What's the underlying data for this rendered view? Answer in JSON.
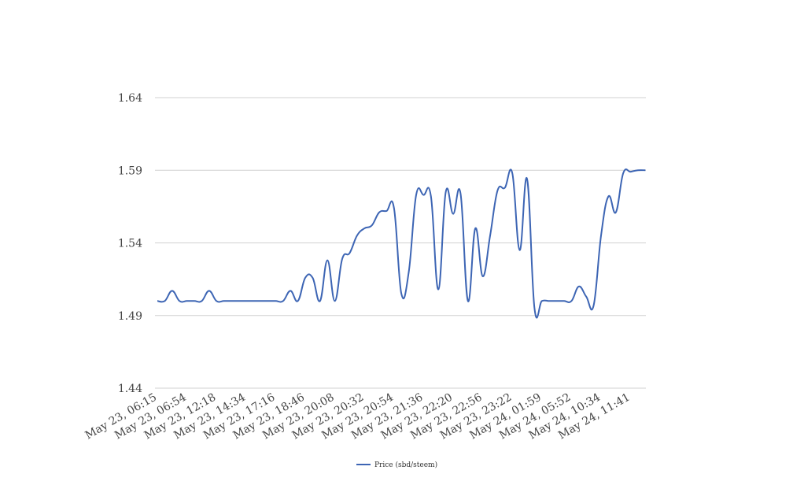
{
  "chart_data": {
    "type": "line",
    "categories": [
      "May 23, 06:15",
      null,
      null,
      null,
      "May 23, 06:54",
      null,
      null,
      null,
      "May 23, 12:18",
      null,
      null,
      null,
      "May 23, 14:34",
      null,
      null,
      null,
      "May 23, 17:16",
      null,
      null,
      null,
      "May 23, 18:46",
      null,
      null,
      null,
      "May 23, 20:08",
      null,
      null,
      null,
      "May 23, 20:32",
      null,
      null,
      null,
      "May 23, 20:54",
      null,
      null,
      null,
      "May 23, 21:36",
      null,
      null,
      null,
      "May 23, 22:20",
      null,
      null,
      null,
      "May 23, 22:56",
      null,
      null,
      null,
      "May 23, 23:22",
      null,
      null,
      null,
      "May 24, 01:59",
      null,
      null,
      null,
      "May 24, 05:52",
      null,
      null,
      null,
      "May 24, 10:34",
      null,
      null,
      null,
      "May 24, 11:41",
      null,
      null
    ],
    "series": [
      {
        "name": "Price (sbd/steem)",
        "color": "#3d65b4",
        "values": [
          1.5,
          1.5,
          1.507,
          1.5,
          1.5,
          1.5,
          1.5,
          1.507,
          1.5,
          1.5,
          1.5,
          1.5,
          1.5,
          1.5,
          1.5,
          1.5,
          1.5,
          1.5,
          1.507,
          1.5,
          1.516,
          1.516,
          1.5,
          1.528,
          1.5,
          1.529,
          1.533,
          1.545,
          1.55,
          1.552,
          1.561,
          1.562,
          1.564,
          1.505,
          1.52,
          1.573,
          1.573,
          1.572,
          1.508,
          1.575,
          1.56,
          1.574,
          1.5,
          1.55,
          1.517,
          1.545,
          1.576,
          1.578,
          1.588,
          1.535,
          1.584,
          1.495,
          1.5,
          1.5,
          1.5,
          1.5,
          1.5,
          1.51,
          1.503,
          1.497,
          1.545,
          1.572,
          1.561,
          1.588,
          1.589,
          1.59,
          1.59
        ]
      }
    ],
    "ylim": [
      1.44,
      1.64
    ],
    "yticks": [
      1.44,
      1.49,
      1.54,
      1.59,
      1.64
    ],
    "grid": true,
    "legend": "bottom"
  }
}
